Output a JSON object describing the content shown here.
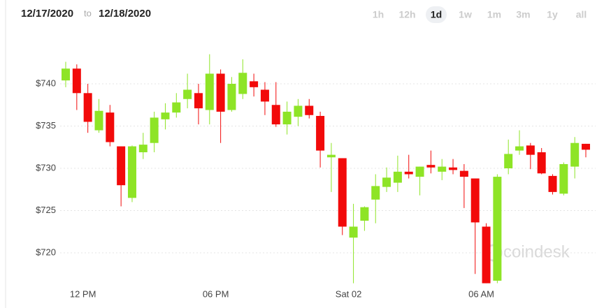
{
  "chart_data": {
    "type": "candlestick",
    "start_date": "12/17/2020",
    "connector": "to",
    "end_date": "12/18/2020",
    "ranges": [
      "1h",
      "12h",
      "1d",
      "1w",
      "1m",
      "3m",
      "1y",
      "all"
    ],
    "selected_range": "1d",
    "watermark": "coindesk",
    "categories": [
      null,
      null,
      "12 PM",
      null,
      null,
      null,
      null,
      null,
      null,
      null,
      null,
      null,
      null,
      null,
      "06 PM",
      null,
      null,
      null,
      null,
      null,
      null,
      null,
      null,
      null,
      null,
      null,
      "Sat 02",
      null,
      null,
      null,
      null,
      null,
      null,
      null,
      null,
      null,
      null,
      null,
      "06 AM",
      null,
      null,
      null,
      null,
      null,
      null,
      null,
      null,
      null
    ],
    "open": [
      740.4,
      741.8,
      738.9,
      734.5,
      736.6,
      732.6,
      726.5,
      731.9,
      733.0,
      735.8,
      736.6,
      738.2,
      738.9,
      736.9,
      741.2,
      736.9,
      738.8,
      740.3,
      739.3,
      737.5,
      735.2,
      736.1,
      737.4,
      736.2,
      731.3,
      731.2,
      721.8,
      723.8,
      726.3,
      727.8,
      728.3,
      729.6,
      729.0,
      730.4,
      729.6,
      730.1,
      729.7,
      728.8,
      723.1,
      716.7,
      730.0,
      732.1,
      732.7,
      731.9,
      729.1,
      727.0,
      730.2,
      732.9
    ],
    "high": [
      742.6,
      742.3,
      740.0,
      738.2,
      737.5,
      732.6,
      732.7,
      734.2,
      736.7,
      737.7,
      738.9,
      741.2,
      740.0,
      743.5,
      741.7,
      740.8,
      742.9,
      741.2,
      740.2,
      740.2,
      737.9,
      738.2,
      738.2,
      736.7,
      733.0,
      731.2,
      725.8,
      725.5,
      729.3,
      730.1,
      731.5,
      731.6,
      730.2,
      732.1,
      731.1,
      731.1,
      730.5,
      728.8,
      723.5,
      729.3,
      733.4,
      734.5,
      733.0,
      732.4,
      729.3,
      730.7,
      733.7,
      732.9
    ],
    "low": [
      739.6,
      736.9,
      734.2,
      734.2,
      732.6,
      725.5,
      726.0,
      731.1,
      731.9,
      734.6,
      736.0,
      737.1,
      735.2,
      735.2,
      733.0,
      736.7,
      738.2,
      738.5,
      736.3,
      734.9,
      734.0,
      735.0,
      735.9,
      730.1,
      727.2,
      722.1,
      716.4,
      722.6,
      723.5,
      727.2,
      727.2,
      728.8,
      726.8,
      729.4,
      728.6,
      729.3,
      725.3,
      717.5,
      716.4,
      716.4,
      729.3,
      731.6,
      729.9,
      729.3,
      726.9,
      726.8,
      728.8,
      731.3
    ],
    "close": [
      741.8,
      738.9,
      735.5,
      736.8,
      733.1,
      728.0,
      732.6,
      732.8,
      736.0,
      736.6,
      737.8,
      739.3,
      737.1,
      741.2,
      736.7,
      740.0,
      741.3,
      739.6,
      737.9,
      735.2,
      736.7,
      737.4,
      736.3,
      732.1,
      731.6,
      723.1,
      723.1,
      725.4,
      727.9,
      728.9,
      729.6,
      729.3,
      730.2,
      730.1,
      730.2,
      729.8,
      729.0,
      723.6,
      716.4,
      729.0,
      731.7,
      732.6,
      731.6,
      729.4,
      727.2,
      730.5,
      733.0,
      732.2
    ],
    "up_color": "#8ee426",
    "down_color": "#f20a0a",
    "ylim": [
      716,
      745
    ],
    "yticks": [
      {
        "value": 720,
        "label": "$720"
      },
      {
        "value": 725,
        "label": "$725"
      },
      {
        "value": 730,
        "label": "$730"
      },
      {
        "value": 735,
        "label": "$735"
      },
      {
        "value": 740,
        "label": "$740"
      }
    ],
    "grid": true
  }
}
